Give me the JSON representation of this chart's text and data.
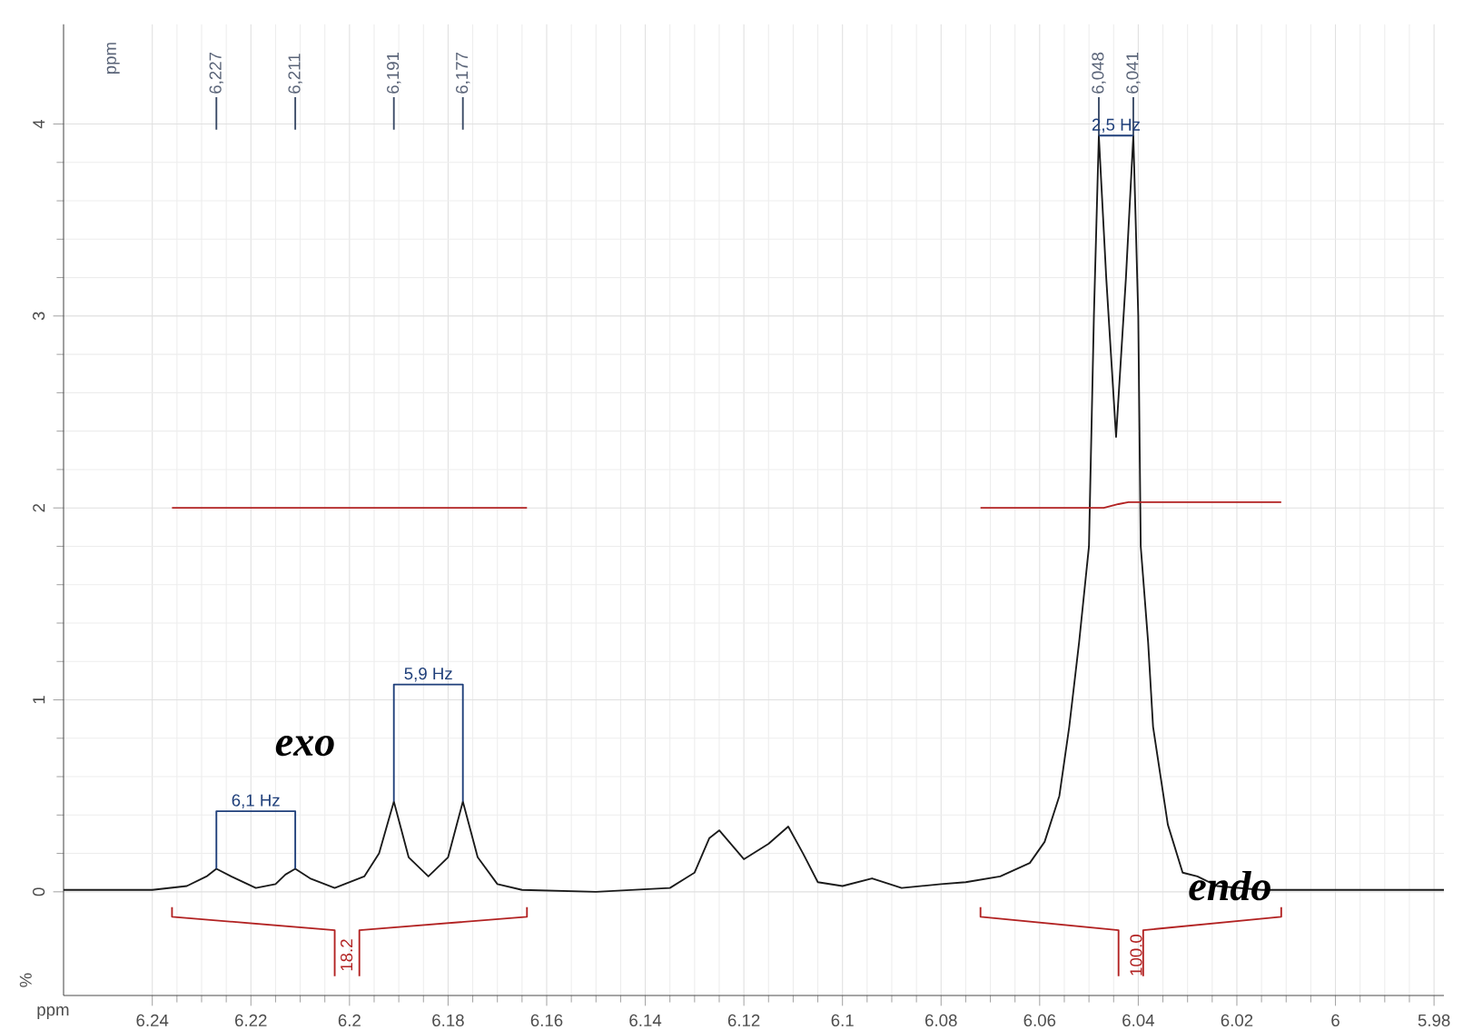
{
  "chart_data": {
    "type": "line",
    "xlabel": "ppm",
    "xlim": [
      6.258,
      5.978
    ],
    "ylim": [
      -0.54,
      4.52
    ],
    "xticks": [
      6.24,
      6.22,
      6.2,
      6.18,
      6.16,
      6.14,
      6.12,
      6.1,
      6.08,
      6.06,
      6.04,
      6.02,
      6,
      5.98
    ],
    "yticks": [
      0,
      1,
      2,
      3,
      4
    ],
    "grid": true,
    "marker": "none",
    "line_style": "solid",
    "series": [
      {
        "color": "#1a1a1a",
        "x": [
          6.258,
          6.25,
          6.24,
          6.233,
          6.229,
          6.227,
          6.224,
          6.219,
          6.215,
          6.213,
          6.211,
          6.208,
          6.203,
          6.197,
          6.194,
          6.191,
          6.188,
          6.184,
          6.18,
          6.177,
          6.174,
          6.17,
          6.165,
          6.15,
          6.135,
          6.13,
          6.127,
          6.125,
          6.12,
          6.115,
          6.111,
          6.108,
          6.105,
          6.1,
          6.094,
          6.088,
          6.08,
          6.075,
          6.068,
          6.062,
          6.059,
          6.056,
          6.054,
          6.052,
          6.05,
          6.049,
          6.048,
          6.0465,
          6.0445,
          6.0425,
          6.041,
          6.04,
          6.0395,
          6.038,
          6.037,
          6.034,
          6.031,
          6.028,
          6.024,
          6.015,
          6.0,
          5.978
        ],
        "values": [
          0.01,
          0.01,
          0.01,
          0.03,
          0.08,
          0.12,
          0.08,
          0.02,
          0.04,
          0.09,
          0.12,
          0.07,
          0.02,
          0.08,
          0.2,
          0.47,
          0.18,
          0.08,
          0.18,
          0.47,
          0.18,
          0.04,
          0.01,
          0.0,
          0.02,
          0.1,
          0.28,
          0.32,
          0.17,
          0.25,
          0.34,
          0.2,
          0.05,
          0.03,
          0.07,
          0.02,
          0.04,
          0.05,
          0.08,
          0.15,
          0.26,
          0.5,
          0.86,
          1.3,
          1.8,
          3.0,
          3.94,
          3.2,
          2.37,
          3.2,
          3.94,
          3.0,
          1.8,
          1.3,
          0.86,
          0.35,
          0.1,
          0.08,
          0.03,
          0.01,
          0.01,
          0.01
        ]
      },
      {
        "color": "#b22222",
        "x": [
          6.236,
          6.164
        ],
        "values": [
          2.0,
          2.0
        ]
      },
      {
        "color": "#b22222",
        "x": [
          6.072,
          6.047,
          6.044,
          6.042,
          6.011
        ],
        "values": [
          2.0,
          2.0,
          2.02,
          2.03,
          2.03
        ]
      },
      {
        "color": "#b22222",
        "x": [
          6.236,
          6.236,
          6.203,
          6.203,
          6.2,
          6.198,
          6.198,
          6.164,
          6.164
        ],
        "values": [
          -0.08,
          -0.13,
          -0.2,
          -0.44,
          null,
          -0.44,
          -0.2,
          -0.13,
          -0.08
        ]
      },
      {
        "color": "#b22222",
        "x": [
          6.072,
          6.072,
          6.044,
          6.044,
          6.042,
          6.039,
          6.039,
          6.011,
          6.011
        ],
        "values": [
          -0.08,
          -0.13,
          -0.2,
          -0.44,
          null,
          -0.44,
          -0.2,
          -0.13,
          -0.08
        ]
      },
      {
        "color": "#3a4a66",
        "x": [
          6.227,
          6.227,
          6.22,
          6.211,
          6.211,
          6.2,
          6.191,
          6.191,
          6.185,
          6.177,
          6.177,
          6.1,
          6.048,
          6.048,
          6.045,
          6.041,
          6.041
        ],
        "values": [
          3.97,
          4.14,
          null,
          3.97,
          4.14,
          null,
          3.97,
          4.14,
          null,
          3.97,
          4.14,
          null,
          3.94,
          4.14,
          null,
          3.94,
          4.14
        ]
      },
      {
        "color": "#1f3f7a",
        "x": [
          6.227,
          6.227,
          6.211,
          6.211
        ],
        "values": [
          0.12,
          0.42,
          0.42,
          0.12
        ]
      },
      {
        "color": "#1f3f7a",
        "x": [
          6.191,
          6.191,
          6.177,
          6.177
        ],
        "values": [
          0.47,
          1.08,
          1.08,
          0.47
        ]
      },
      {
        "color": "#1f3f7a",
        "x": [
          6.048,
          6.041
        ],
        "values": [
          3.94,
          3.94
        ]
      }
    ],
    "annotations": [
      "6,227",
      "6,211",
      "6,191",
      "6,177",
      "6,048",
      "6,041",
      "ppm",
      {
        "text": "6,1 Hz",
        "x": 6.219,
        "y": 0.42
      },
      {
        "text": "5,9 Hz",
        "x": 6.184,
        "y": 1.08
      },
      {
        "text": "2,5 Hz",
        "x": 6.0445,
        "y": 3.94
      },
      "exo",
      "endo",
      "18.2",
      "100.0",
      "%"
    ]
  }
}
